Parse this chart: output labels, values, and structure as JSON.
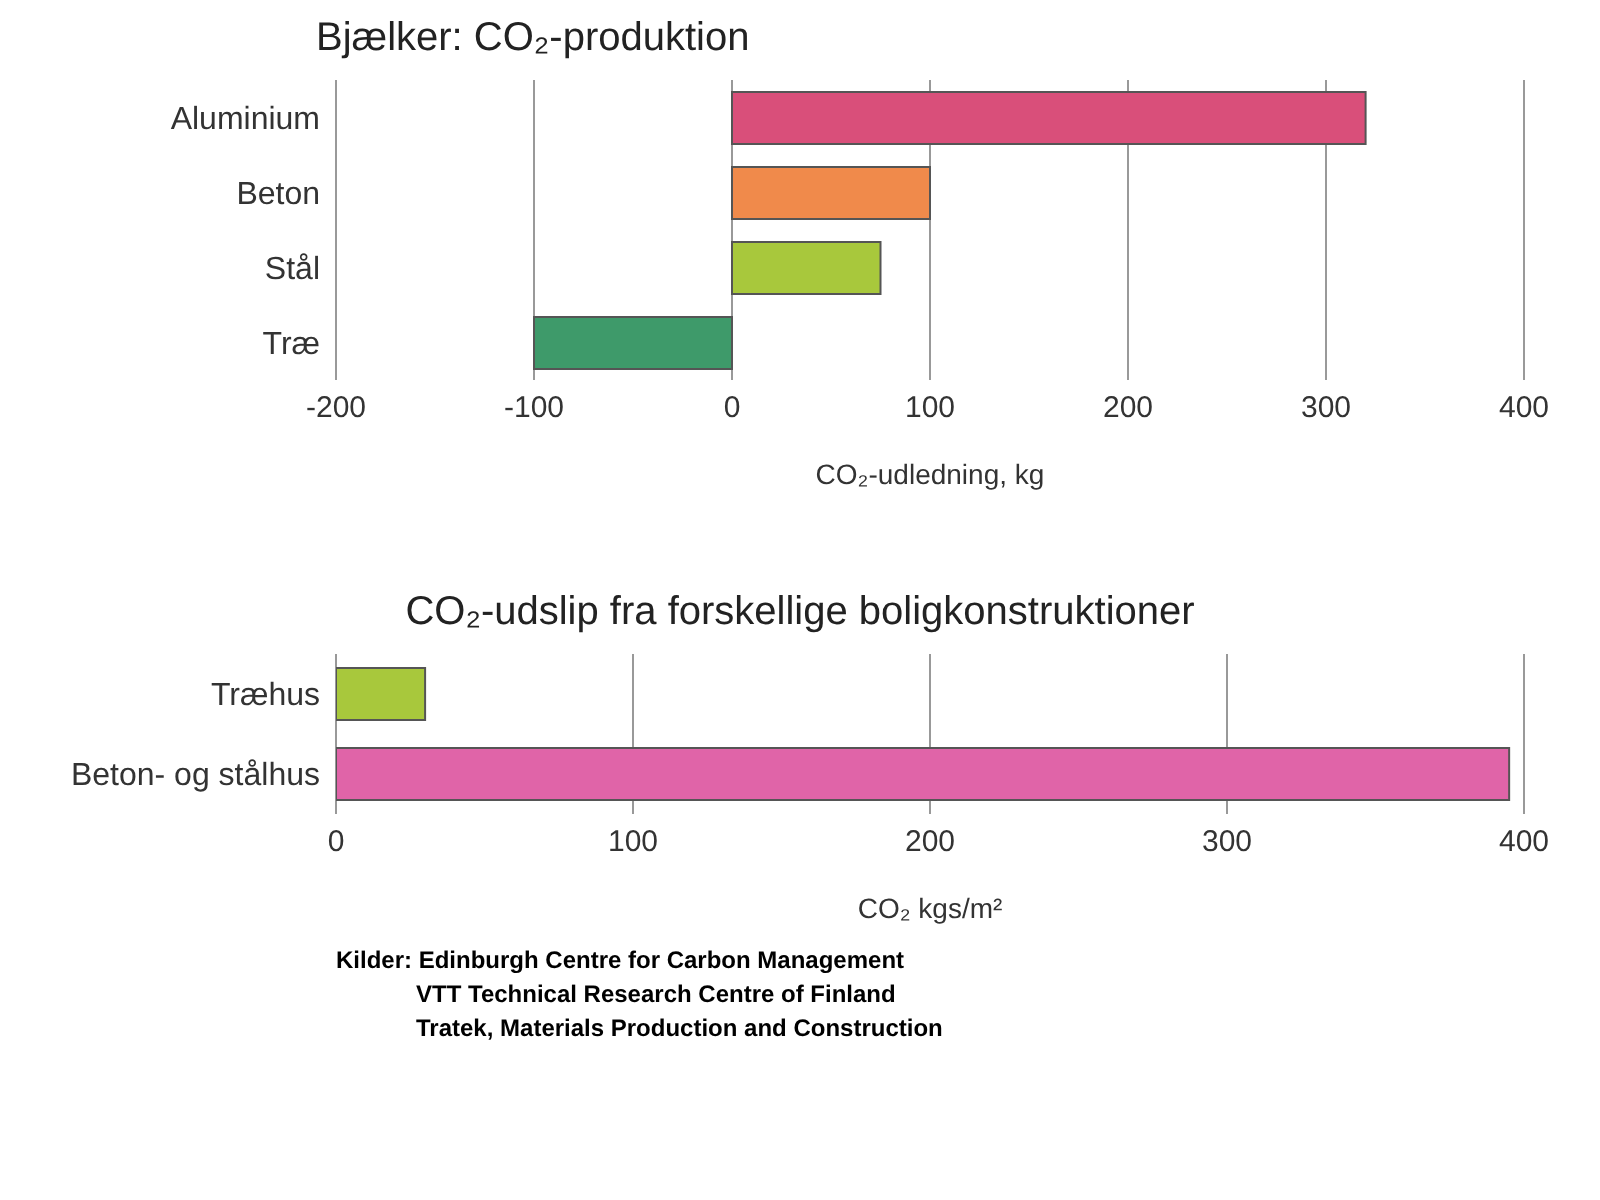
{
  "chart_data": [
    {
      "type": "bar",
      "orientation": "horizontal",
      "title": "Bjælker: CO₂-produktion",
      "xlabel": "CO₂-udledning, kg",
      "categories": [
        "Aluminium",
        "Beton",
        "Stål",
        "Træ"
      ],
      "values": [
        320,
        100,
        75,
        -100
      ],
      "colors": [
        "#d94f7a",
        "#f08a4b",
        "#a8c83c",
        "#3e9a6a"
      ],
      "xlim": [
        -200,
        400
      ],
      "xticks": [
        -200,
        -100,
        0,
        100,
        200,
        300,
        400
      ],
      "grid": "x",
      "legend": false
    },
    {
      "type": "bar",
      "orientation": "horizontal",
      "title": "CO₂-udslip fra forskellige boligkonstruktioner",
      "xlabel": "CO₂ kgs/m²",
      "categories": [
        "Træhus",
        "Beton- og stålhus"
      ],
      "values": [
        30,
        395
      ],
      "colors": [
        "#a8c83c",
        "#e064a8"
      ],
      "xlim": [
        0,
        400
      ],
      "xticks": [
        0,
        100,
        200,
        300,
        400
      ],
      "grid": "x",
      "legend": false,
      "annotations": [
        "Kilder: Edinburgh Centre for Carbon Management",
        "VTT Technical Research Centre of Finland",
        "Tratek, Materials  Production and  Construction"
      ]
    }
  ]
}
